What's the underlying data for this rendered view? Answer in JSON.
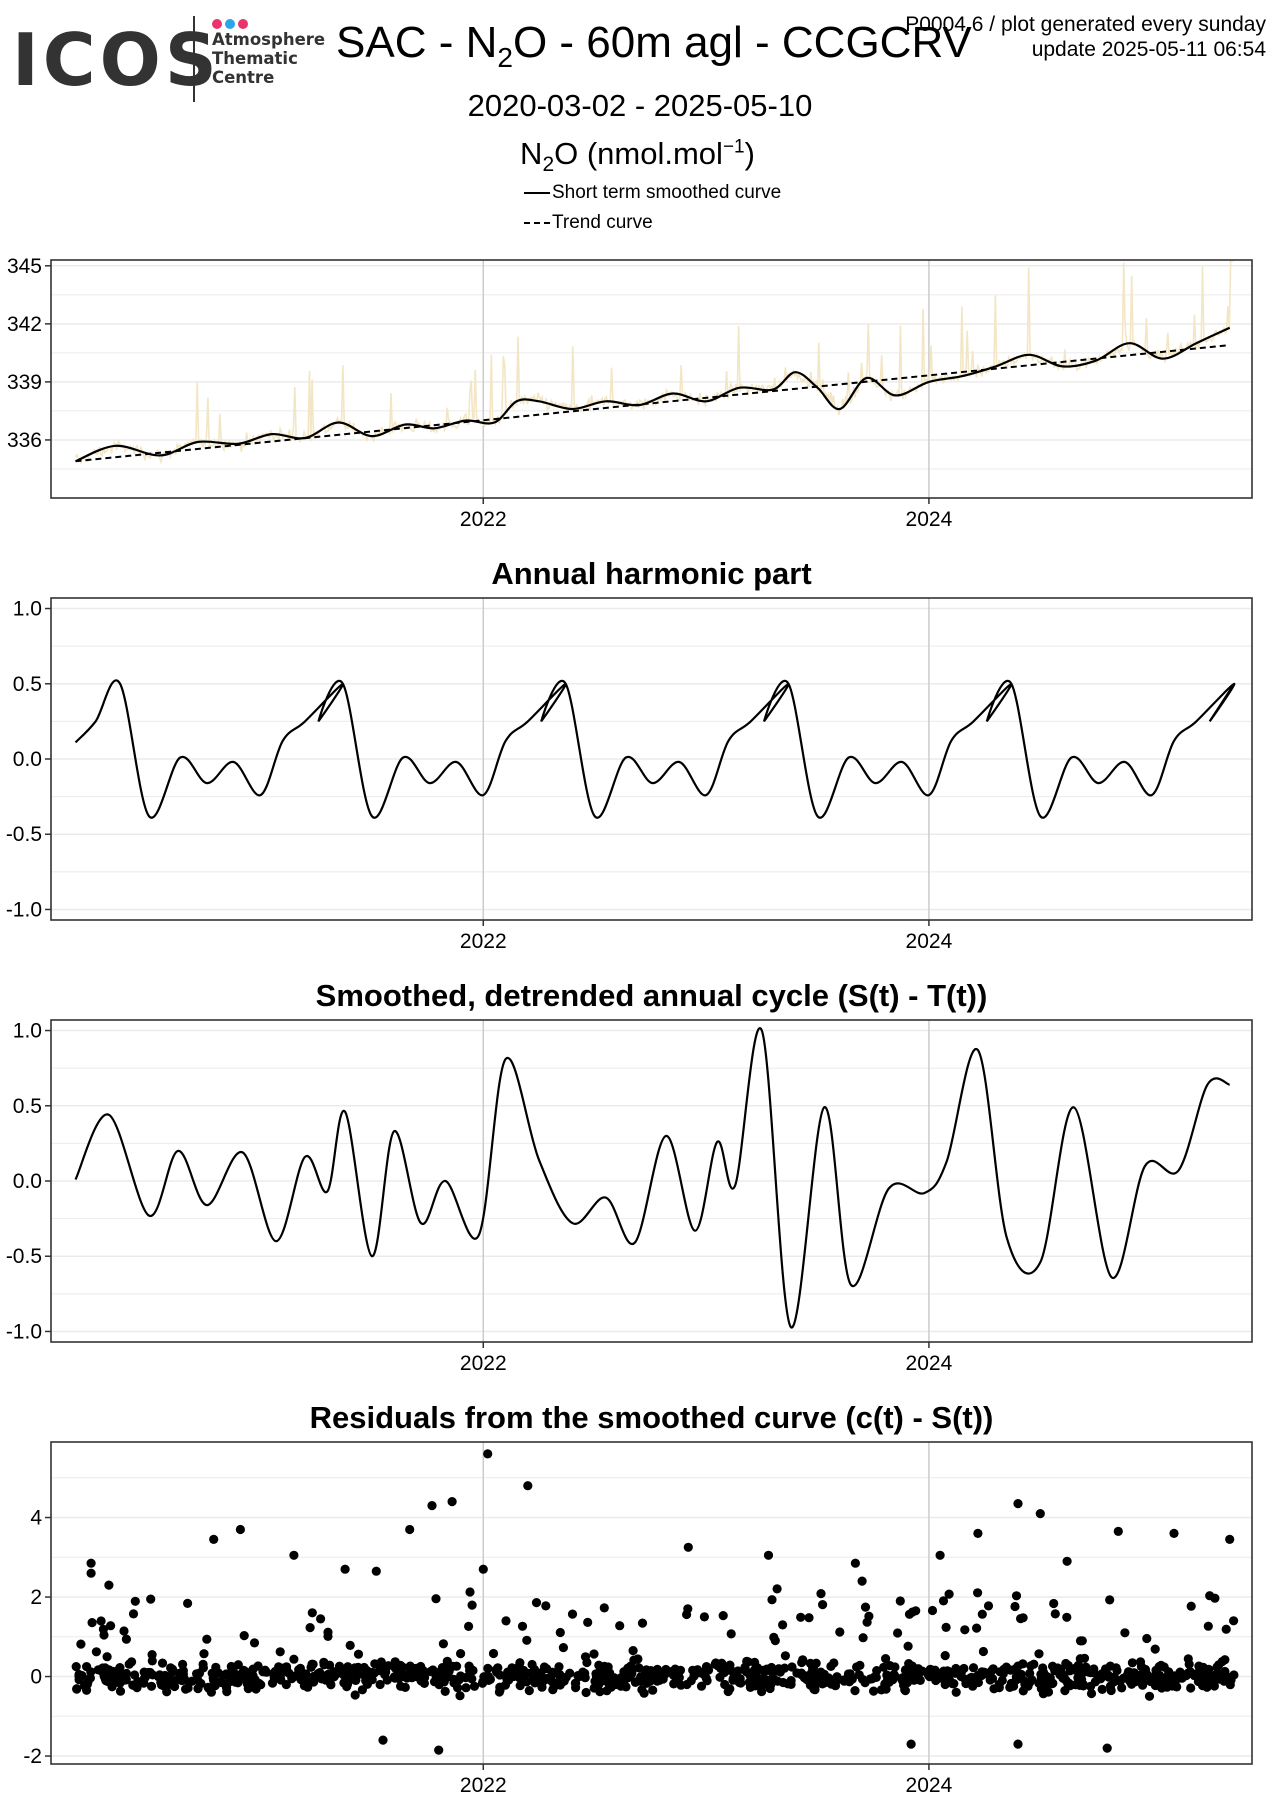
{
  "header": {
    "logo_text": "ICOS",
    "logo_sub": [
      "Atmosphere",
      "Thematic",
      "Centre"
    ],
    "logo_dot_colors": [
      "#e8336c",
      "#2aa6e8",
      "#e8336c"
    ],
    "title_prefix": "SAC - N",
    "title_sub": "2",
    "title_suffix": "O - 60m agl - CCGCRV",
    "note_line1": "P0004.6 / plot generated every sunday",
    "note_line2": "update  2025-05-11 06:54",
    "date_range": "2020-03-02 - 2025-05-10",
    "ytitle_prefix": "N",
    "ytitle_sub": "2",
    "ytitle_mid": "O (nmol.mol",
    "ytitle_sup": "−1",
    "ytitle_end": ")",
    "legend": [
      "Short term smoothed curve",
      "Trend curve"
    ]
  },
  "colors": {
    "raw_data": "#f3e6c4",
    "curve": "#000000",
    "grid_major": "#cccccc",
    "grid_minor": "#ebebeb",
    "panel_border": "#333333"
  },
  "chart_data": [
    {
      "type": "line",
      "title": "",
      "xlabel": "",
      "ylabel": "N2O (nmol.mol-1)",
      "x_ticks": [
        2022,
        2024
      ],
      "y_ticks": [
        336,
        339,
        342,
        345
      ],
      "xlim": [
        2020.06,
        2025.45
      ],
      "ylim": [
        333.0,
        345.3
      ],
      "grid": true,
      "series": [
        {
          "name": "Short term smoothed curve",
          "style": "solid",
          "x": [
            2020.17,
            2020.35,
            2020.55,
            2020.72,
            2020.9,
            2021.05,
            2021.2,
            2021.35,
            2021.5,
            2021.65,
            2021.78,
            2021.92,
            2022.05,
            2022.15,
            2022.25,
            2022.4,
            2022.55,
            2022.7,
            2022.85,
            2023.0,
            2023.15,
            2023.3,
            2023.4,
            2023.5,
            2023.6,
            2023.72,
            2023.85,
            2024.0,
            2024.15,
            2024.3,
            2024.45,
            2024.6,
            2024.75,
            2024.9,
            2025.05,
            2025.2,
            2025.35
          ],
          "y": [
            334.9,
            335.7,
            335.2,
            335.9,
            335.8,
            336.3,
            336.1,
            336.9,
            336.2,
            336.8,
            336.6,
            337.0,
            336.9,
            338.0,
            338.0,
            337.6,
            338.0,
            337.8,
            338.4,
            338.0,
            338.7,
            338.6,
            339.5,
            338.7,
            337.6,
            339.2,
            338.3,
            339.0,
            339.3,
            339.8,
            340.4,
            339.8,
            340.1,
            341.0,
            340.2,
            341.0,
            341.8
          ]
        },
        {
          "name": "Trend curve",
          "style": "dashed",
          "x": [
            2020.17,
            2025.35
          ],
          "y": [
            334.9,
            340.9
          ]
        }
      ]
    },
    {
      "type": "line",
      "title": "Annual harmonic part",
      "x_ticks": [
        2022,
        2024
      ],
      "y_ticks": [
        -1.0,
        -0.5,
        0.0,
        0.5,
        1.0
      ],
      "xlim": [
        2020.06,
        2025.45
      ],
      "ylim": [
        -1.07,
        1.07
      ],
      "grid": true,
      "series": [
        {
          "name": "",
          "x": [
            2020.17,
            2020.26,
            2020.37,
            2020.5,
            2020.64,
            2020.76,
            2020.88,
            2021.0,
            2021.1,
            2021.2,
            2021.37
          ],
          "y": [
            0.11,
            0.25,
            0.5,
            -0.38,
            0.01,
            -0.16,
            -0.02,
            -0.24,
            0.12,
            0.25,
            0.5
          ],
          "period_years": 1.0
        }
      ]
    },
    {
      "type": "line",
      "title": "Smoothed, detrended annual cycle (S(t) - T(t))",
      "x_ticks": [
        2022,
        2024
      ],
      "y_ticks": [
        -1.0,
        -0.5,
        0.0,
        0.5,
        1.0
      ],
      "xlim": [
        2020.06,
        2025.45
      ],
      "ylim": [
        -1.07,
        1.07
      ],
      "grid": true,
      "series": [
        {
          "name": "",
          "x": [
            2020.17,
            2020.32,
            2020.5,
            2020.63,
            2020.76,
            2020.92,
            2021.07,
            2021.2,
            2021.3,
            2021.38,
            2021.5,
            2021.6,
            2021.72,
            2021.83,
            2021.98,
            2022.1,
            2022.25,
            2022.4,
            2022.55,
            2022.68,
            2022.82,
            2022.95,
            2023.05,
            2023.13,
            2023.25,
            2023.38,
            2023.53,
            2023.65,
            2023.82,
            2023.98,
            2024.08,
            2024.22,
            2024.35,
            2024.5,
            2024.65,
            2024.82,
            2024.97,
            2025.12,
            2025.25,
            2025.35
          ],
          "y": [
            0.01,
            0.44,
            -0.23,
            0.2,
            -0.16,
            0.19,
            -0.4,
            0.16,
            -0.07,
            0.46,
            -0.5,
            0.33,
            -0.28,
            0.0,
            -0.36,
            0.81,
            0.14,
            -0.28,
            -0.11,
            -0.41,
            0.3,
            -0.33,
            0.26,
            -0.03,
            1.0,
            -0.97,
            0.49,
            -0.69,
            -0.05,
            -0.08,
            0.13,
            0.87,
            -0.38,
            -0.54,
            0.49,
            -0.64,
            0.1,
            0.07,
            0.64,
            0.64
          ]
        }
      ]
    },
    {
      "type": "scatter",
      "title": "Residuals from the smoothed curve (c(t) - S(t))",
      "x_ticks": [
        2022,
        2024
      ],
      "y_ticks": [
        -2,
        0,
        2,
        4
      ],
      "xlim": [
        2020.06,
        2025.45
      ],
      "ylim": [
        -2.2,
        5.9
      ],
      "grid": true,
      "n_points": 1050,
      "y_range_of_bulk": [
        -1.2,
        1.2
      ],
      "outliers": [
        {
          "x": 2022.02,
          "y": 5.6
        },
        {
          "x": 2022.2,
          "y": 4.8
        },
        {
          "x": 2021.86,
          "y": 4.4
        },
        {
          "x": 2021.77,
          "y": 4.3
        },
        {
          "x": 2024.4,
          "y": 4.35
        },
        {
          "x": 2024.5,
          "y": 4.1
        },
        {
          "x": 2021.67,
          "y": 3.7
        },
        {
          "x": 2020.91,
          "y": 3.7
        },
        {
          "x": 2020.79,
          "y": 3.45
        },
        {
          "x": 2021.15,
          "y": 3.05
        },
        {
          "x": 2022.92,
          "y": 3.25
        },
        {
          "x": 2023.28,
          "y": 3.05
        },
        {
          "x": 2024.05,
          "y": 3.05
        },
        {
          "x": 2024.22,
          "y": 3.6
        },
        {
          "x": 2025.1,
          "y": 3.6
        },
        {
          "x": 2025.35,
          "y": 3.45
        },
        {
          "x": 2024.85,
          "y": 3.65
        },
        {
          "x": 2020.24,
          "y": 2.85
        },
        {
          "x": 2020.24,
          "y": 2.6
        },
        {
          "x": 2020.32,
          "y": 2.3
        },
        {
          "x": 2023.67,
          "y": 2.85
        },
        {
          "x": 2023.7,
          "y": 2.4
        },
        {
          "x": 2024.62,
          "y": 2.9
        },
        {
          "x": 2021.38,
          "y": 2.7
        },
        {
          "x": 2021.52,
          "y": 2.65
        },
        {
          "x": 2022.0,
          "y": 2.7
        },
        {
          "x": 2023.92,
          "y": -1.7
        },
        {
          "x": 2021.8,
          "y": -1.85
        },
        {
          "x": 2024.8,
          "y": -1.8
        },
        {
          "x": 2021.55,
          "y": -1.6
        },
        {
          "x": 2024.4,
          "y": -1.7
        }
      ]
    }
  ]
}
